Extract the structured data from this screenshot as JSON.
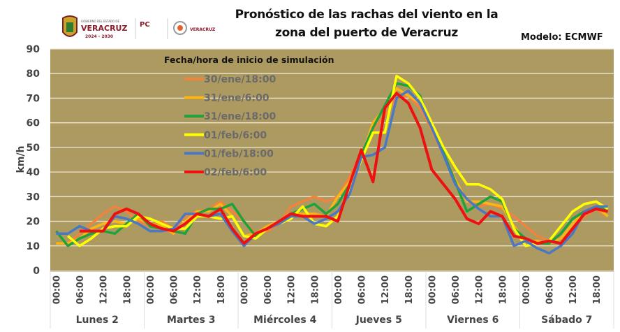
{
  "header": {
    "title_line1": "Pronóstico de las rachas del viento en la",
    "title_line2": "zona del puerto de Veracruz",
    "model": "Modelo: ECMWF",
    "logo_texts": [
      "GOBIERNO DEL ESTADO DE",
      "VERACRUZ",
      "2024 - 2030",
      "PC",
      "VERACRUZ"
    ]
  },
  "chart_data": {
    "type": "line",
    "ylabel": "km/h",
    "ylim": [
      0,
      90
    ],
    "yticks": [
      0,
      10,
      20,
      30,
      40,
      50,
      60,
      70,
      80,
      90
    ],
    "grid": true,
    "legend_title": "Fecha/hora de inicio de simulación",
    "legend_placement": "top-center",
    "x_step_hours": 3,
    "hour_labels": [
      "00:00",
      "06:00",
      "12:00",
      "18:00"
    ],
    "days": [
      "Lunes 2",
      "Martes 3",
      "Miércoles 4",
      "Jueves 5",
      "Viernes 6",
      "Sábado 7"
    ],
    "series": [
      {
        "name": "30/ene/18:00",
        "color": "#f0843c",
        "values": [
          11,
          11,
          15,
          19,
          23,
          26,
          24,
          20,
          18,
          20,
          17,
          22,
          24,
          25,
          28,
          24,
          20,
          15,
          16,
          19,
          26,
          28,
          30,
          28,
          30,
          38,
          48,
          57,
          63,
          70,
          71,
          66,
          57,
          47,
          36,
          28,
          26,
          27,
          25,
          22,
          18,
          14,
          12,
          11,
          17,
          22,
          25,
          22
        ]
      },
      {
        "name": "31/ene/6:00",
        "color": "#fdb515",
        "values": [
          11,
          11,
          13,
          17,
          19,
          20,
          19,
          21,
          19,
          18,
          15,
          20,
          24,
          24,
          27,
          22,
          14,
          15,
          18,
          20,
          23,
          23,
          23,
          22,
          30,
          36,
          46,
          60,
          66,
          74,
          71,
          68,
          58,
          48,
          37,
          28,
          28,
          27,
          26,
          18,
          12,
          12,
          11,
          13,
          19,
          24,
          26,
          22
        ]
      },
      {
        "name": "31/ene/18:00",
        "color": "#1ea23c",
        "values": [
          16,
          10,
          13,
          15,
          16,
          15,
          19,
          23,
          18,
          17,
          16,
          15,
          23,
          25,
          25,
          27,
          20,
          14,
          17,
          20,
          23,
          25,
          27,
          23,
          27,
          35,
          47,
          58,
          67,
          76,
          75,
          71,
          58,
          48,
          36,
          24,
          27,
          30,
          28,
          17,
          13,
          11,
          11,
          15,
          21,
          24,
          26,
          25
        ]
      },
      {
        "name": "01/feb/6:00",
        "color": "#ffff00",
        "values": [
          null,
          14,
          10,
          13,
          17,
          18,
          18,
          22,
          21,
          19,
          17,
          17,
          22,
          22,
          21,
          22,
          14,
          13,
          17,
          19,
          21,
          26,
          19,
          18,
          22,
          33,
          45,
          56,
          56,
          79,
          76,
          70,
          60,
          50,
          42,
          35,
          35,
          33,
          29,
          17,
          10,
          11,
          12,
          18,
          24,
          27,
          28,
          25
        ]
      },
      {
        "name": "01/feb/18:00",
        "color": "#4a78c4",
        "values": [
          15,
          15,
          18,
          16,
          16,
          22,
          21,
          19,
          16,
          16,
          17,
          23,
          23,
          22,
          23,
          16,
          10,
          15,
          17,
          19,
          22,
          22,
          19,
          21,
          24,
          31,
          46,
          47,
          50,
          70,
          73,
          68,
          58,
          47,
          35,
          29,
          25,
          22,
          22,
          10,
          12,
          9,
          7,
          10,
          15,
          24,
          26,
          26
        ]
      },
      {
        "name": "02/feb/6:00",
        "color": "#ee1111",
        "values": [
          null,
          null,
          16,
          16,
          16,
          23,
          25,
          23,
          19,
          17,
          16,
          19,
          23,
          22,
          25,
          17,
          11,
          15,
          17,
          20,
          23,
          22,
          22,
          22,
          20,
          35,
          49,
          36,
          66,
          72,
          68,
          58,
          41,
          35,
          29,
          21,
          19,
          24,
          22,
          14,
          13,
          11,
          12,
          11,
          17,
          23,
          25,
          24
        ]
      }
    ]
  }
}
